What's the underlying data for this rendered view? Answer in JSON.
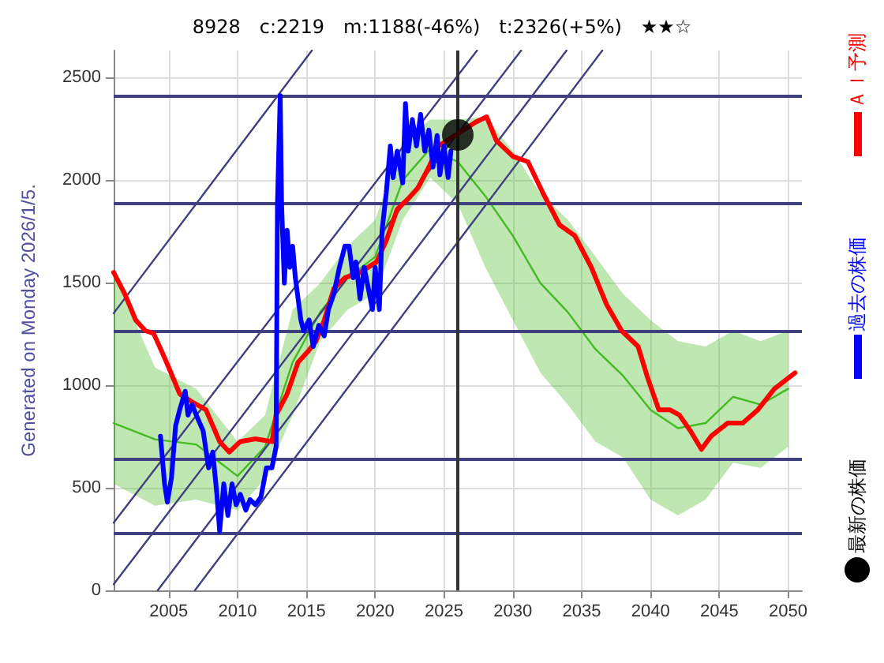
{
  "chart_data": {
    "type": "line",
    "title": "8928　c:2219　m:1188(-46%)　t:2326(+5%)　★★☆",
    "ylabel": "Generated on Monday 2026/1/5.",
    "xlim": [
      2001,
      2051
    ],
    "xticks": [
      2005,
      2010,
      2015,
      2020,
      2025,
      2030,
      2035,
      2040,
      2045,
      2050
    ],
    "ylim": [
      0,
      2630
    ],
    "yticks": [
      0,
      500,
      1000,
      1500,
      2000,
      2500
    ],
    "grid": true,
    "legend": "right",
    "line_style": "solid",
    "ref_lines": [
      {
        "axis": "y",
        "value": 2410,
        "color": "#404080"
      },
      {
        "axis": "y",
        "value": 1888,
        "color": "#404080"
      },
      {
        "axis": "y",
        "value": 1260,
        "color": "#404080"
      },
      {
        "axis": "y",
        "value": 640,
        "color": "#404080"
      },
      {
        "axis": "y",
        "value": 275,
        "color": "#404080"
      },
      {
        "axis": "x",
        "value": 2026,
        "color": "#333333"
      }
    ],
    "series": [
      {
        "color": "#44bb22",
        "x": [
          2001,
          2004,
          2007,
          2010,
          2012,
          2014,
          2016,
          2018,
          2020,
          2022,
          2024,
          2026,
          2028,
          2030,
          2032,
          2034,
          2036,
          2038,
          2040,
          2042,
          2044,
          2046,
          2048,
          2050
        ],
        "values": [
          815,
          736,
          711,
          557,
          700,
          1111,
          1355,
          1522,
          1625,
          1998,
          2152,
          2088,
          1921,
          1728,
          1497,
          1355,
          1175,
          1046,
          880,
          790,
          815,
          943,
          905,
          982
        ],
        "lower": [
          519,
          412,
          442,
          390,
          545,
          854,
          1214,
          1368,
          1445,
          1805,
          2011,
          1883,
          1574,
          1317,
          1060,
          905,
          725,
          648,
          442,
          365,
          442,
          622,
          597,
          700
        ],
        "upper": [
          1549,
          1086,
          981,
          725,
          854,
          1368,
          1497,
          1677,
          1805,
          2191,
          2294,
          2294,
          2307,
          2140,
          1934,
          1805,
          1626,
          1445,
          1317,
          1214,
          1188,
          1265,
          1214,
          1265
        ]
      },
      {
        "color": "#404080",
        "x": [
          2001,
          2015.4
        ],
        "values": [
          1350,
          2630
        ]
      },
      {
        "color": "#404080",
        "x": [
          2001,
          2027.4
        ],
        "values": [
          330,
          2630
        ]
      },
      {
        "color": "#404080",
        "x": [
          2001,
          2030.6
        ],
        "values": [
          30,
          2630
        ]
      },
      {
        "color": "#404080",
        "x": [
          2004.2,
          2033.9
        ],
        "values": [
          0,
          2630
        ]
      },
      {
        "color": "#404080",
        "x": [
          2006.9,
          2036.5
        ],
        "values": [
          0,
          2630
        ]
      },
      {
        "name": "ＡＩ予測",
        "color": "#ff0000",
        "x": [
          2001,
          2001.8,
          2002.6,
          2003.3,
          2003.9,
          2004.5,
          2005,
          2005.8,
          2006.7,
          2007.7,
          2008.7,
          2009.4,
          2010.2,
          2011.3,
          2012.5,
          2012.8,
          2013.6,
          2014.4,
          2015.1,
          2015.7,
          2016.3,
          2017,
          2017.8,
          2018.9,
          2020.1,
          2020.8,
          2021.6,
          2022.4,
          2023.1,
          2023.9,
          2024.6,
          2027.3,
          2028.1,
          2028.8,
          2030,
          2031.1,
          2032.2,
          2033.4,
          2034.5,
          2035.7,
          2036.8,
          2037.9,
          2039.1,
          2039.8,
          2040.6,
          2041.4,
          2042.1,
          2042.9,
          2043.7,
          2044.4,
          2045.6,
          2046.7,
          2047.8,
          2049,
          2050.5
        ],
        "values": [
          1549,
          1445,
          1317,
          1265,
          1252,
          1163,
          1086,
          957,
          918,
          880,
          725,
          674,
          725,
          738,
          725,
          854,
          957,
          1111,
          1163,
          1214,
          1317,
          1471,
          1523,
          1549,
          1600,
          1703,
          1857,
          1908,
          1960,
          2062,
          2165,
          2281,
          2307,
          2191,
          2114,
          2088,
          1934,
          1780,
          1728,
          1574,
          1394,
          1265,
          1188,
          1034,
          880,
          880,
          854,
          777,
          687,
          751,
          815,
          815,
          880,
          982,
          1060
        ]
      },
      {
        "name": "過去の株価",
        "color": "#0000ff",
        "x": [
          2004.4,
          2004.7,
          2004.9,
          2005.2,
          2005.5,
          2005.8,
          2006.2,
          2006.4,
          2006.7,
          2007,
          2007.5,
          2007.9,
          2008.2,
          2008.5,
          2008.7,
          2009,
          2009.3,
          2009.6,
          2009.9,
          2010.2,
          2010.6,
          2010.9,
          2011.3,
          2011.7,
          2012.1,
          2012.5,
          2012.8,
          2012.9,
          2013.1,
          2013.2,
          2013.4,
          2013.6,
          2013.8,
          2014,
          2014.2,
          2014.6,
          2014.8,
          2015.2,
          2015.5,
          2015.9,
          2016.3,
          2016.6,
          2017,
          2017.4,
          2017.8,
          2018.1,
          2018.4,
          2018.6,
          2018.9,
          2019.2,
          2019.5,
          2019.8,
          2020,
          2020.3,
          2020.5,
          2020.8,
          2021.1,
          2021.3,
          2021.6,
          2022,
          2022.2,
          2022.4,
          2022.7,
          2023,
          2023.3,
          2023.6,
          2023.9,
          2024.2,
          2024.5,
          2024.7,
          2025,
          2025.3,
          2025.5
        ],
        "values": [
          751,
          519,
          430,
          548,
          802,
          880,
          970,
          854,
          905,
          854,
          777,
          597,
          674,
          468,
          288,
          519,
          365,
          519,
          417,
          468,
          391,
          442,
          417,
          455,
          597,
          597,
          700,
          1883,
          2410,
          1883,
          1497,
          1754,
          1574,
          1677,
          1523,
          1317,
          1265,
          1317,
          1188,
          1291,
          1240,
          1368,
          1445,
          1574,
          1677,
          1677,
          1523,
          1600,
          1420,
          1574,
          1471,
          1368,
          1574,
          1368,
          1754,
          1934,
          2165,
          2011,
          2140,
          1985,
          2371,
          2140,
          2294,
          2165,
          2319,
          2140,
          2242,
          2062,
          2216,
          2024,
          2165,
          2011,
          2140
        ]
      },
      {
        "name": "最新の株価",
        "type": "scatter",
        "color": "#000000",
        "x": [
          2026
        ],
        "values": [
          2219
        ]
      }
    ]
  }
}
